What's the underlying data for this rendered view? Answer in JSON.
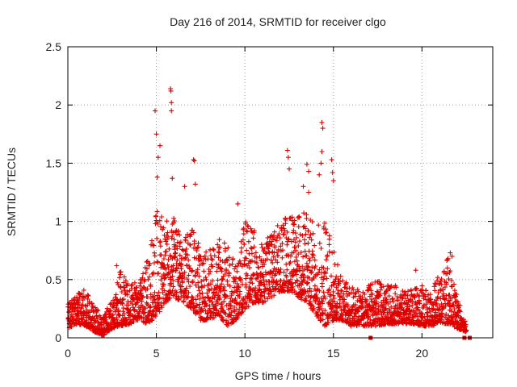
{
  "chart_data": {
    "type": "scatter",
    "title": "Day 216 of 2014, SRMTID for receiver clgo",
    "xlabel": "GPS time / hours",
    "ylabel": "SRMTID / TECUs",
    "xlim": [
      0,
      24
    ],
    "ylim": [
      0,
      2.5
    ],
    "x_ticks": [
      0,
      5,
      10,
      15,
      20
    ],
    "x_tick_labels": [
      "0",
      "5",
      "10",
      "15",
      "20"
    ],
    "y_ticks": [
      0,
      0.5,
      1,
      1.5,
      2,
      2.5
    ],
    "y_tick_labels": [
      "0",
      "0.5",
      "1",
      "1.5",
      "2",
      "2.5"
    ],
    "grid": true,
    "marker": "plus",
    "color": "#e00000",
    "series": [
      {
        "name": "SRMTID",
        "envelope_hours": [
          0,
          0.5,
          1,
          1.5,
          2,
          2.5,
          3,
          3.5,
          4,
          4.5,
          5,
          5.5,
          6,
          6.5,
          7,
          7.5,
          8,
          8.5,
          9,
          9.5,
          10,
          10.5,
          11,
          11.5,
          12,
          12.5,
          13,
          13.5,
          14,
          14.5,
          15,
          15.5,
          16,
          16.5,
          17,
          17.5,
          18,
          18.5,
          19,
          19.5,
          20,
          20.5,
          21,
          21.5,
          22,
          22.5
        ],
        "envelope_low": [
          0.08,
          0.12,
          0.1,
          0.05,
          0.02,
          0.08,
          0.1,
          0.12,
          0.15,
          0.12,
          0.18,
          0.3,
          0.35,
          0.3,
          0.25,
          0.15,
          0.15,
          0.2,
          0.1,
          0.15,
          0.25,
          0.3,
          0.3,
          0.35,
          0.4,
          0.4,
          0.35,
          0.3,
          0.2,
          0.1,
          0.15,
          0.15,
          0.1,
          0.1,
          0.1,
          0.1,
          0.12,
          0.12,
          0.12,
          0.12,
          0.1,
          0.1,
          0.12,
          0.12,
          0.08,
          0.05
        ],
        "envelope_high": [
          0.3,
          0.38,
          0.42,
          0.28,
          0.2,
          0.32,
          0.62,
          0.45,
          0.5,
          0.7,
          1.1,
          1.0,
          1.05,
          0.8,
          1.0,
          0.75,
          0.75,
          0.85,
          0.8,
          0.65,
          1.0,
          0.95,
          0.85,
          0.9,
          1.0,
          1.1,
          1.05,
          1.1,
          0.95,
          1.05,
          0.8,
          0.5,
          0.45,
          0.4,
          0.45,
          0.5,
          0.45,
          0.45,
          0.4,
          0.42,
          0.45,
          0.42,
          0.55,
          0.7,
          0.35,
          0.12
        ],
        "spike_points": [
          [
            4.93,
            1.95
          ],
          [
            5.0,
            1.75
          ],
          [
            5.1,
            1.55
          ],
          [
            5.2,
            1.65
          ],
          [
            5.8,
            2.14
          ],
          [
            5.82,
            2.12
          ],
          [
            5.85,
            2.02
          ],
          [
            5.85,
            1.95
          ],
          [
            5.9,
            1.37
          ],
          [
            5.05,
            1.38
          ],
          [
            6.6,
            1.3
          ],
          [
            7.1,
            1.53
          ],
          [
            7.15,
            1.52
          ],
          [
            7.2,
            1.32
          ],
          [
            9.6,
            1.15
          ],
          [
            12.4,
            1.61
          ],
          [
            12.45,
            1.55
          ],
          [
            12.5,
            1.45
          ],
          [
            13.3,
            1.3
          ],
          [
            13.5,
            1.49
          ],
          [
            13.6,
            1.43
          ],
          [
            13.6,
            1.25
          ],
          [
            14.35,
            1.85
          ],
          [
            14.4,
            1.8
          ],
          [
            14.35,
            1.6
          ],
          [
            14.3,
            1.5
          ],
          [
            14.2,
            1.4
          ],
          [
            14.9,
            1.53
          ],
          [
            14.95,
            1.42
          ],
          [
            15.0,
            1.35
          ],
          [
            21.6,
            0.73
          ],
          [
            21.7,
            0.7
          ],
          [
            19.65,
            0.58
          ],
          [
            17.5,
            0.48
          ],
          [
            2.75,
            0.62
          ]
        ],
        "zero_points": [
          [
            17.1,
            0
          ],
          [
            22.4,
            0
          ],
          [
            22.7,
            0
          ]
        ]
      }
    ]
  }
}
